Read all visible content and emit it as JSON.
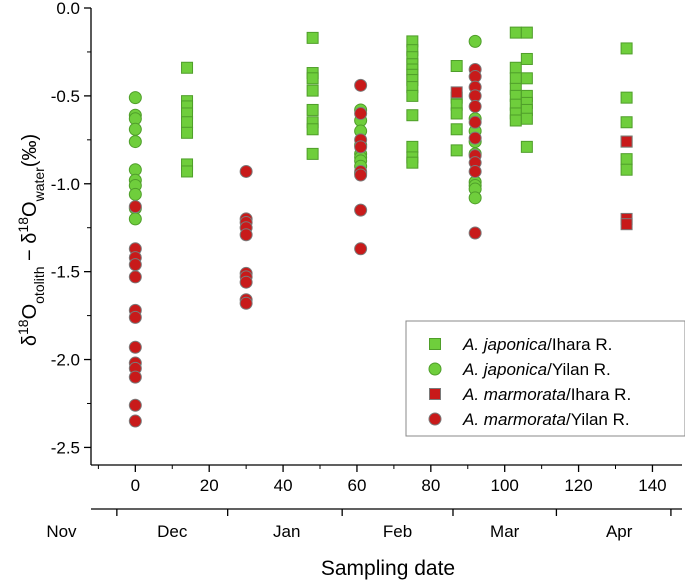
{
  "chart_data": {
    "type": "scatter",
    "title": "",
    "xlabel": "Sampling date",
    "ylabel": {
      "delta": "δ",
      "sup1": "18",
      "o1": "O",
      "sub1": "otolith",
      "minus": " − δ",
      "sup2": "18",
      "o2": "O",
      "sub2": "water",
      "unit": "(‰)"
    },
    "xlim": [
      -12,
      148
    ],
    "ylim": [
      -2.6,
      0.0
    ],
    "x_ticks": [
      0,
      20,
      40,
      60,
      80,
      100,
      120,
      140
    ],
    "x_tick_labels": [
      "0",
      "20",
      "40",
      "60",
      "80",
      "100",
      "120",
      "140"
    ],
    "month_ticks": [
      -5,
      25,
      56,
      86,
      114,
      145
    ],
    "month_labels": [
      {
        "label": "Nov",
        "x": -20
      },
      {
        "label": "Dec",
        "x": 10
      },
      {
        "label": "Jan",
        "x": 41
      },
      {
        "label": "Feb",
        "x": 71
      },
      {
        "label": "Mar",
        "x": 100
      },
      {
        "label": "Apr",
        "x": 131
      }
    ],
    "y_ticks": [
      0.0,
      -0.5,
      -1.0,
      -1.5,
      -2.0,
      -2.5
    ],
    "y_tick_labels": [
      "0.0",
      "-0.5",
      "-1.0",
      "-1.5",
      "-2.0",
      "-2.5"
    ],
    "legend": {
      "placement": "bottom-right",
      "entries": [
        {
          "species": "A. japonica",
          "site": "/Ihara R."
        },
        {
          "species": "A. japonica",
          "site": "/Yilan R."
        },
        {
          "species": "A. marmorata",
          "site": "/Ihara R."
        },
        {
          "species": "A. marmorata",
          "site": "/Yilan R."
        }
      ]
    },
    "colors": {
      "green": "#6fce3c",
      "green_edge": "#4f9e2a",
      "red": "#c81a1a",
      "red_edge": "#7a7a7a"
    },
    "series": [
      {
        "marker": "square",
        "color": "green",
        "points": [
          [
            14,
            -0.34
          ],
          [
            14,
            -0.53
          ],
          [
            14,
            -0.56
          ],
          [
            14,
            -0.6
          ],
          [
            14,
            -0.65
          ],
          [
            14,
            -0.71
          ],
          [
            14,
            -0.89
          ],
          [
            14,
            -0.93
          ],
          [
            48,
            -0.17
          ],
          [
            48,
            -0.37
          ],
          [
            48,
            -0.4
          ],
          [
            48,
            -0.47
          ],
          [
            48,
            -0.58
          ],
          [
            48,
            -0.65
          ],
          [
            48,
            -0.69
          ],
          [
            48,
            -0.83
          ],
          [
            75,
            -0.19
          ],
          [
            75,
            -0.24
          ],
          [
            75,
            -0.28
          ],
          [
            75,
            -0.32
          ],
          [
            75,
            -0.35
          ],
          [
            75,
            -0.38
          ],
          [
            75,
            -0.41
          ],
          [
            75,
            -0.45
          ],
          [
            75,
            -0.5
          ],
          [
            75,
            -0.61
          ],
          [
            75,
            -0.79
          ],
          [
            75,
            -0.85
          ],
          [
            75,
            -0.88
          ],
          [
            87,
            -0.33
          ],
          [
            87,
            -0.51
          ],
          [
            87,
            -0.55
          ],
          [
            87,
            -0.6
          ],
          [
            87,
            -0.69
          ],
          [
            87,
            -0.81
          ],
          [
            103,
            -0.14
          ],
          [
            103,
            -0.34
          ],
          [
            103,
            -0.4
          ],
          [
            103,
            -0.46
          ],
          [
            103,
            -0.5
          ],
          [
            103,
            -0.55
          ],
          [
            103,
            -0.6
          ],
          [
            103,
            -0.64
          ],
          [
            106,
            -0.14
          ],
          [
            106,
            -0.29
          ],
          [
            106,
            -0.4
          ],
          [
            106,
            -0.5
          ],
          [
            106,
            -0.54
          ],
          [
            106,
            -0.58
          ],
          [
            106,
            -0.63
          ],
          [
            106,
            -0.79
          ],
          [
            133,
            -0.23
          ],
          [
            133,
            -0.51
          ],
          [
            133,
            -0.65
          ],
          [
            133,
            -0.76
          ],
          [
            133,
            -0.86
          ],
          [
            133,
            -0.92
          ]
        ]
      },
      {
        "marker": "circle",
        "color": "green",
        "points": [
          [
            0,
            -0.51
          ],
          [
            0,
            -0.61
          ],
          [
            0,
            -0.63
          ],
          [
            0,
            -0.69
          ],
          [
            0,
            -0.76
          ],
          [
            0,
            -0.92
          ],
          [
            0,
            -0.98
          ],
          [
            0,
            -1.01
          ],
          [
            0,
            -1.06
          ],
          [
            0,
            -1.14
          ],
          [
            0,
            -1.2
          ],
          [
            61,
            -0.58
          ],
          [
            61,
            -0.64
          ],
          [
            61,
            -0.7
          ],
          [
            61,
            -0.78
          ],
          [
            61,
            -0.83
          ],
          [
            61,
            -0.85
          ],
          [
            61,
            -0.87
          ],
          [
            61,
            -0.9
          ],
          [
            61,
            -0.94
          ],
          [
            92,
            -0.19
          ],
          [
            92,
            -0.63
          ],
          [
            92,
            -0.7
          ],
          [
            92,
            -0.76
          ],
          [
            92,
            -0.83
          ],
          [
            92,
            -0.99
          ],
          [
            92,
            -1.01
          ],
          [
            92,
            -1.03
          ],
          [
            92,
            -1.08
          ]
        ]
      },
      {
        "marker": "square",
        "color": "red",
        "points": [
          [
            87,
            -0.48
          ],
          [
            133,
            -0.76
          ],
          [
            133,
            -1.2
          ],
          [
            133,
            -1.23
          ]
        ]
      },
      {
        "marker": "circle",
        "color": "red",
        "points": [
          [
            0,
            -1.13
          ],
          [
            0,
            -1.37
          ],
          [
            0,
            -1.42
          ],
          [
            0,
            -1.46
          ],
          [
            0,
            -1.53
          ],
          [
            0,
            -1.72
          ],
          [
            0,
            -1.76
          ],
          [
            0,
            -1.93
          ],
          [
            0,
            -2.02
          ],
          [
            0,
            -2.05
          ],
          [
            0,
            -2.1
          ],
          [
            0,
            -2.26
          ],
          [
            0,
            -2.35
          ],
          [
            30,
            -0.93
          ],
          [
            30,
            -1.2
          ],
          [
            30,
            -1.22
          ],
          [
            30,
            -1.25
          ],
          [
            30,
            -1.29
          ],
          [
            30,
            -1.51
          ],
          [
            30,
            -1.53
          ],
          [
            30,
            -1.56
          ],
          [
            30,
            -1.66
          ],
          [
            30,
            -1.68
          ],
          [
            61,
            -0.44
          ],
          [
            61,
            -0.6
          ],
          [
            61,
            -0.75
          ],
          [
            61,
            -0.79
          ],
          [
            61,
            -0.93
          ],
          [
            61,
            -0.95
          ],
          [
            61,
            -1.15
          ],
          [
            61,
            -1.37
          ],
          [
            92,
            -0.35
          ],
          [
            92,
            -0.39
          ],
          [
            92,
            -0.45
          ],
          [
            92,
            -0.5
          ],
          [
            92,
            -0.56
          ],
          [
            92,
            -0.65
          ],
          [
            92,
            -0.74
          ],
          [
            92,
            -0.84
          ],
          [
            92,
            -0.88
          ],
          [
            92,
            -0.93
          ],
          [
            92,
            -1.28
          ]
        ]
      }
    ]
  }
}
